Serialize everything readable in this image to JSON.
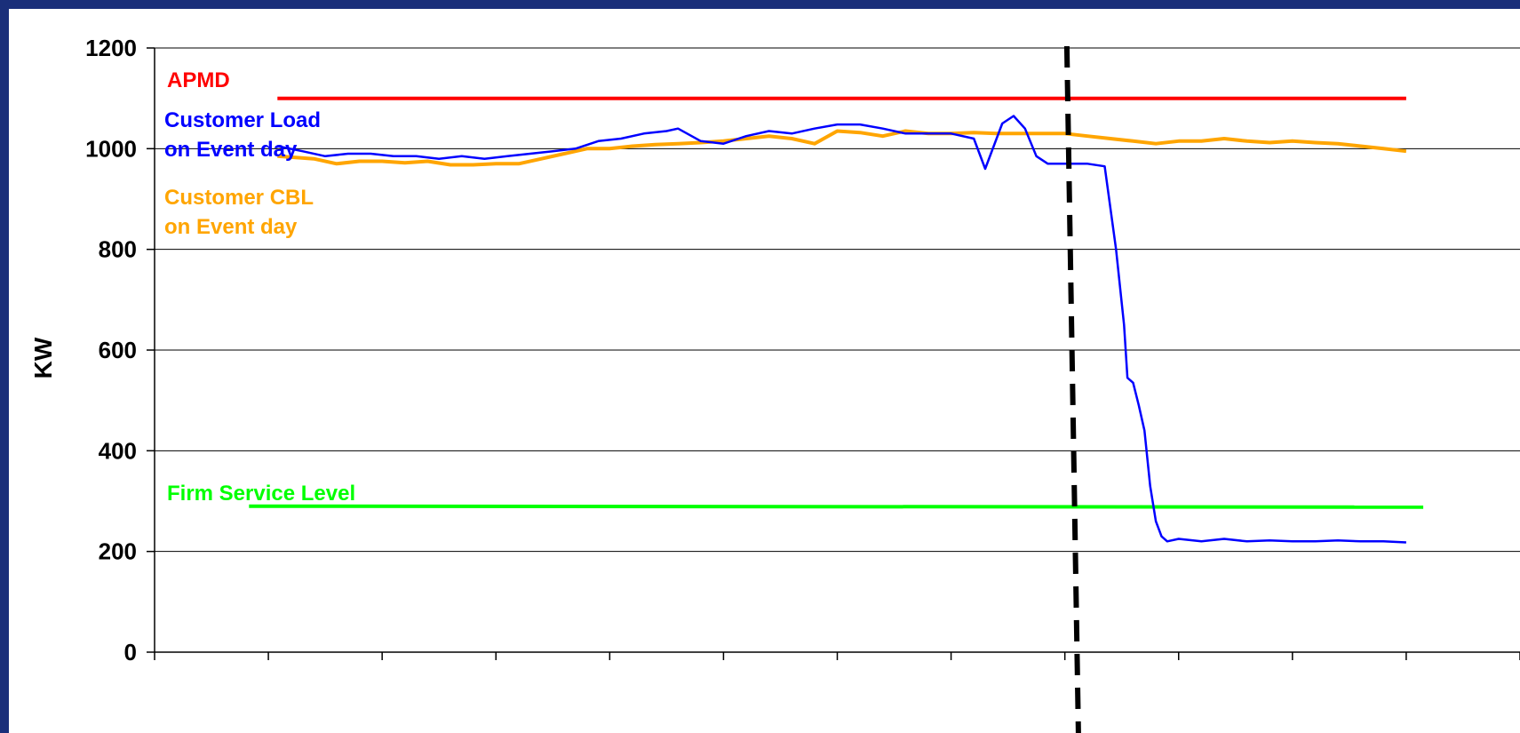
{
  "chart_data": {
    "type": "line",
    "ylabel": "KW",
    "xlabel": "",
    "title": "",
    "ylim": [
      0,
      1200
    ],
    "xlim": [
      0,
      12
    ],
    "yticks": [
      0,
      200,
      400,
      600,
      800,
      1000,
      1200
    ],
    "ytick_labels": [
      "0",
      "200",
      "400",
      "600",
      "800",
      "1000",
      "1200"
    ],
    "xtick_count": 12,
    "grid": "horizontal",
    "event_marker_x": 8.08,
    "colors": {
      "apmd": "#ff0000",
      "load": "#0000ff",
      "cbl": "#ffa500",
      "firm": "#00ff00",
      "event_line": "#000000"
    },
    "annotations": {
      "apmd": "APMD",
      "load_line1": "Customer Load",
      "load_line2": "on Event day",
      "cbl_line1": "Customer CBL",
      "cbl_line2": "on Event day",
      "firm": "Firm Service Level"
    },
    "series": [
      {
        "key": "apmd",
        "x": [
          1.08,
          11.0
        ],
        "y": [
          1100,
          1100
        ]
      },
      {
        "key": "firm",
        "x": [
          0.83,
          11.15
        ],
        "y": [
          290,
          288
        ]
      },
      {
        "key": "cbl",
        "x": [
          1.08,
          1.4,
          1.6,
          1.8,
          2.0,
          2.2,
          2.4,
          2.6,
          2.8,
          3.0,
          3.2,
          3.4,
          3.6,
          3.8,
          4.0,
          4.2,
          4.4,
          4.6,
          4.8,
          5.0,
          5.2,
          5.4,
          5.6,
          5.8,
          6.0,
          6.2,
          6.4,
          6.6,
          6.8,
          7.0,
          7.2,
          7.4,
          7.6,
          7.8,
          8.0,
          8.2,
          8.4,
          8.6,
          8.8,
          9.0,
          9.2,
          9.4,
          9.6,
          9.8,
          10.0,
          10.2,
          10.4,
          10.6,
          10.8,
          11.0
        ],
        "y": [
          985,
          980,
          970,
          975,
          975,
          972,
          975,
          968,
          968,
          970,
          970,
          980,
          990,
          1000,
          1000,
          1005,
          1008,
          1010,
          1012,
          1015,
          1020,
          1025,
          1020,
          1010,
          1035,
          1032,
          1025,
          1035,
          1030,
          1030,
          1032,
          1030,
          1030,
          1030,
          1030,
          1025,
          1020,
          1015,
          1010,
          1015,
          1015,
          1020,
          1015,
          1012,
          1015,
          1012,
          1010,
          1005,
          1000,
          995
        ]
      },
      {
        "key": "load",
        "x": [
          1.08,
          1.3,
          1.5,
          1.7,
          1.9,
          2.1,
          2.3,
          2.5,
          2.7,
          2.9,
          3.1,
          3.3,
          3.5,
          3.7,
          3.9,
          4.1,
          4.3,
          4.5,
          4.6,
          4.8,
          5.0,
          5.2,
          5.4,
          5.6,
          5.8,
          6.0,
          6.2,
          6.4,
          6.6,
          6.8,
          7.0,
          7.2,
          7.3,
          7.35,
          7.45,
          7.55,
          7.65,
          7.75,
          7.85,
          8.0,
          8.2,
          8.35,
          8.45,
          8.52,
          8.55,
          8.6,
          8.65,
          8.7,
          8.75,
          8.8,
          8.85,
          8.9,
          9.0,
          9.2,
          9.4,
          9.6,
          9.8,
          10.0,
          10.2,
          10.4,
          10.6,
          10.8,
          11.0
        ],
        "y": [
          1005,
          995,
          985,
          990,
          990,
          985,
          985,
          980,
          985,
          980,
          985,
          990,
          995,
          1000,
          1015,
          1020,
          1030,
          1035,
          1040,
          1015,
          1010,
          1025,
          1035,
          1030,
          1040,
          1048,
          1048,
          1040,
          1030,
          1030,
          1030,
          1020,
          960,
          990,
          1050,
          1065,
          1040,
          985,
          970,
          970,
          970,
          965,
          800,
          650,
          545,
          535,
          490,
          440,
          330,
          260,
          230,
          220,
          225,
          220,
          225,
          220,
          222,
          220,
          220,
          222,
          220,
          220,
          218
        ]
      }
    ]
  }
}
